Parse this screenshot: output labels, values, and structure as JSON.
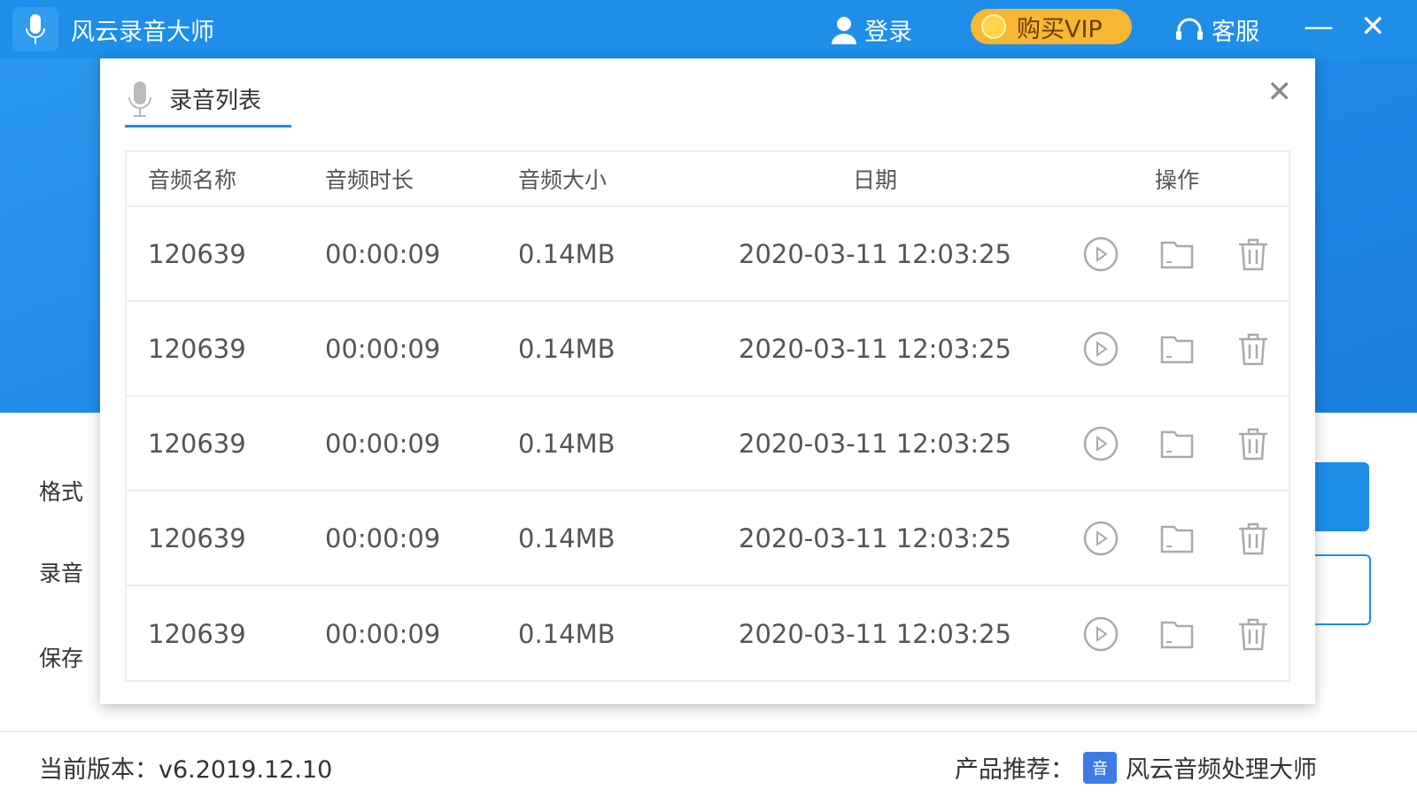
{
  "app": {
    "title": "风云录音大师",
    "login": "登录",
    "vip": "购买VIP",
    "service": "客服",
    "minimize": "—",
    "close": "✕"
  },
  "background": {
    "labels": [
      "格式",
      "录音",
      "保存"
    ]
  },
  "footer": {
    "version": "当前版本：v6.2019.12.10",
    "recommend_label": "产品推荐：",
    "product_icon": "音",
    "product_name": "风云音频处理大师"
  },
  "dialog": {
    "title": "录音列表",
    "close": "✕",
    "columns": [
      "音频名称",
      "音频时长",
      "音频大小",
      "日期",
      "操作"
    ],
    "rows": [
      {
        "name": "120639",
        "duration": "00:00:09",
        "size": "0.14MB",
        "date": "2020-03-11 12:03:25"
      },
      {
        "name": "120639",
        "duration": "00:00:09",
        "size": "0.14MB",
        "date": "2020-03-11 12:03:25"
      },
      {
        "name": "120639",
        "duration": "00:00:09",
        "size": "0.14MB",
        "date": "2020-03-11 12:03:25"
      },
      {
        "name": "120639",
        "duration": "00:00:09",
        "size": "0.14MB",
        "date": "2020-03-11 12:03:25"
      },
      {
        "name": "120639",
        "duration": "00:00:09",
        "size": "0.14MB",
        "date": "2020-03-11 12:03:25"
      }
    ],
    "actions": [
      "play-icon",
      "folder-icon",
      "trash-icon"
    ]
  },
  "colors": {
    "primary": "#1e8ee8",
    "vip": "#f7b733"
  }
}
